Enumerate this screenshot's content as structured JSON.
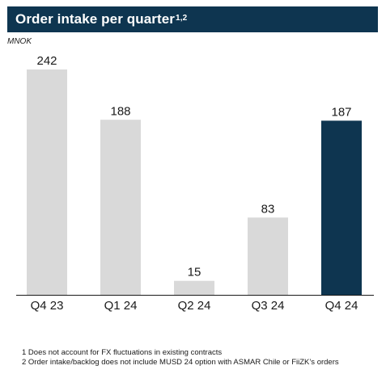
{
  "header": {
    "title": "Order intake per quarter",
    "title_superscript": "1,2"
  },
  "unit_label": "MNOK",
  "colors": {
    "header_bg": "#0e3550",
    "bar_default": "#d9d9d9",
    "bar_highlight": "#0e3550",
    "axis": "#1a1a1a"
  },
  "chart_data": {
    "type": "bar",
    "categories": [
      "Q4 23",
      "Q1 24",
      "Q2 24",
      "Q3 24",
      "Q4 24"
    ],
    "values": [
      242,
      188,
      15,
      83,
      187
    ],
    "data_labels": [
      "242",
      "188",
      "15",
      "83",
      "187"
    ],
    "highlight_index": 4,
    "title": "Order intake per quarter",
    "xlabel": "",
    "ylabel": "MNOK",
    "ylim": [
      0,
      242
    ],
    "grid": false,
    "legend": "none"
  },
  "footnotes": [
    "1 Does not account for FX fluctuations in existing contracts",
    "2 Order intake/backlog does not include MUSD 24 option with ASMAR Chile or FiiZK’s orders"
  ]
}
